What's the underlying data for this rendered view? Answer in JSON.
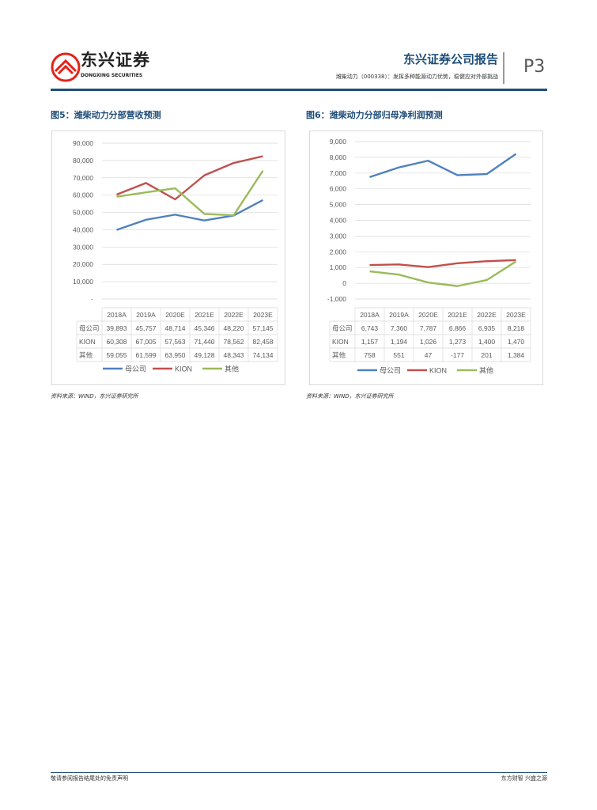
{
  "header": {
    "logo_text": "东兴证券",
    "logo_sub": "DONGXING SECURITIES",
    "report_title": "东兴证券公司报告",
    "subtitle": "潍柴动力（000338）：发挥多种能源动力优势，稳健应对外部挑战",
    "page": "P3",
    "brand_color": "#1f4e79",
    "logo_color": "#e2231a"
  },
  "figures": [
    {
      "title": "图5：潍柴动力分部营收预测",
      "source": "资料来源：WIND，东兴证券研究所"
    },
    {
      "title": "图6：潍柴动力分部归母净利润预测",
      "source": "资料来源：WIND，东兴证券研究所"
    }
  ],
  "chart_data": [
    {
      "type": "line",
      "categories": [
        "2018A",
        "2019A",
        "2020E",
        "2021E",
        "2022E",
        "2023E"
      ],
      "ylim": [
        0,
        90000
      ],
      "yticks": [
        "-",
        "10,000",
        "20,000",
        "30,000",
        "40,000",
        "50,000",
        "60,000",
        "70,000",
        "80,000",
        "90,000"
      ],
      "grid": true,
      "legend": "bottom",
      "data_table": true,
      "series": [
        {
          "name": "母公司",
          "color": "#4f81bd",
          "values": [
            39893,
            45757,
            48714,
            45346,
            48220,
            57145
          ],
          "labels": [
            "39,893",
            "45,757",
            "48,714",
            "45,346",
            "48,220",
            "57,145"
          ]
        },
        {
          "name": "KION",
          "color": "#c0504d",
          "values": [
            60308,
            67005,
            57563,
            71440,
            78562,
            82458
          ],
          "labels": [
            "60,308",
            "67,005",
            "57,563",
            "71,440",
            "78,562",
            "82,458"
          ]
        },
        {
          "name": "其他",
          "color": "#9bbb59",
          "values": [
            59055,
            61599,
            63950,
            49128,
            48343,
            74134
          ],
          "labels": [
            "59,055",
            "61,599",
            "63,950",
            "49,128",
            "48,343",
            "74,134"
          ]
        }
      ]
    },
    {
      "type": "line",
      "categories": [
        "2018A",
        "2019A",
        "2020E",
        "2021E",
        "2022E",
        "2023E"
      ],
      "ylim": [
        -1000,
        9000
      ],
      "yticks": [
        "-1,000",
        "0",
        "1,000",
        "2,000",
        "3,000",
        "4,000",
        "5,000",
        "6,000",
        "7,000",
        "8,000",
        "9,000"
      ],
      "grid": true,
      "legend": "bottom",
      "data_table": true,
      "series": [
        {
          "name": "母公司",
          "color": "#4f81bd",
          "values": [
            6743,
            7360,
            7787,
            6866,
            6935,
            8218
          ],
          "labels": [
            "6,743",
            "7,360",
            "7,787",
            "6,866",
            "6,935",
            "8,218"
          ]
        },
        {
          "name": "KION",
          "color": "#c0504d",
          "values": [
            1157,
            1194,
            1026,
            1273,
            1400,
            1470
          ],
          "labels": [
            "1,157",
            "1,194",
            "1,026",
            "1,273",
            "1,400",
            "1,470"
          ]
        },
        {
          "name": "其他",
          "color": "#9bbb59",
          "values": [
            758,
            551,
            47,
            -177,
            201,
            1384
          ],
          "labels": [
            "758",
            "551",
            "47",
            "-177",
            "201",
            "1,384"
          ]
        }
      ]
    }
  ],
  "footer": {
    "left": "敬请参阅报告结尾处的免责声明",
    "right": "东方财智 兴盛之源"
  }
}
